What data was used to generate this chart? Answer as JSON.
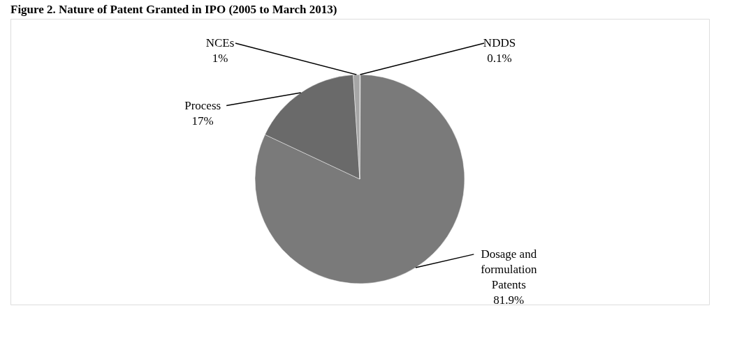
{
  "chart_data": {
    "type": "pie",
    "title": "Figure 2. Nature of Patent Granted in IPO (2005 to March 2013)",
    "categories": [
      "NDDS",
      "Dosage and formulation Patents",
      "Process",
      "NCEs"
    ],
    "values": [
      0.1,
      81.9,
      17,
      1
    ],
    "value_labels": [
      "0.1%",
      "81.9%",
      "17%",
      "1%"
    ],
    "colors": [
      "#8c8c8c",
      "#7a7a7a",
      "#6a6a6a",
      "#a6a6a6"
    ],
    "legend": false
  }
}
